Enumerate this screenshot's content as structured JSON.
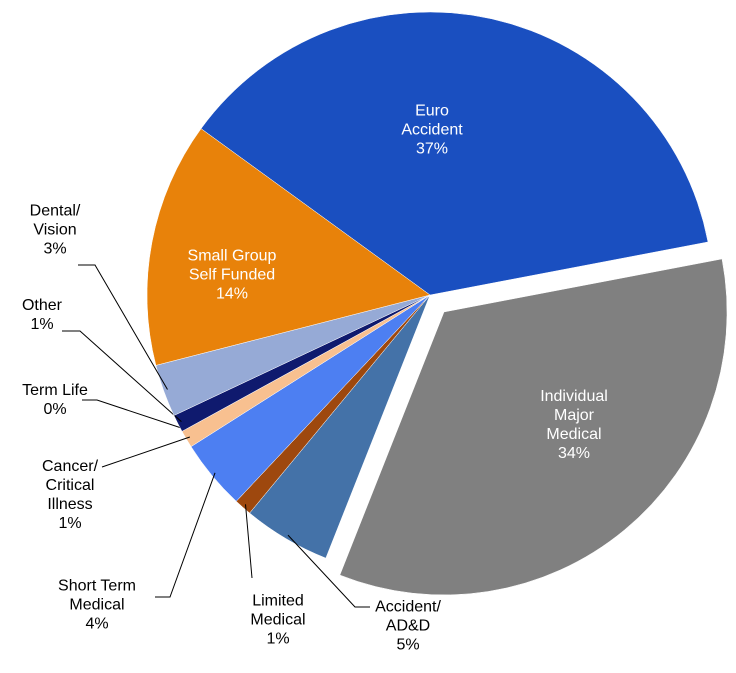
{
  "chart_data": {
    "type": "pie",
    "categories": [
      "Euro Accident",
      "Individual Major Medical",
      "Accident/ AD&D",
      "Limited Medical",
      "Short Term Medical",
      "Cancer/ Critical Illness",
      "Term Life",
      "Other",
      "Dental/ Vision",
      "Small Group Self Funded"
    ],
    "values": [
      37,
      34,
      5,
      1,
      4,
      1,
      0,
      1,
      3,
      14
    ],
    "value_labels": [
      "37%",
      "34%",
      "5%",
      "1%",
      "4%",
      "1%",
      "0%",
      "1%",
      "3%",
      "14%"
    ],
    "colors": [
      "#1a4fc0",
      "#808080",
      "#4472a8",
      "#9e480e",
      "#4d7ff2",
      "#f8c090",
      "#5aa0c8",
      "#0f1a6e",
      "#96aad6",
      "#e8820a"
    ]
  }
}
